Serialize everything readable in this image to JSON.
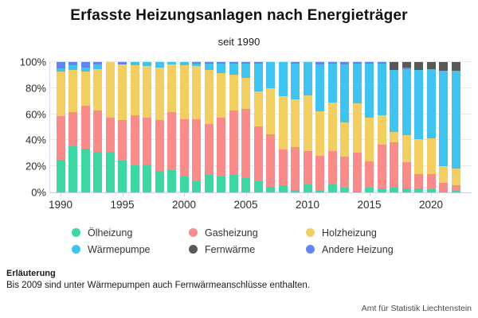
{
  "title": "Erfasste Heizungsanlagen nach Energieträger",
  "subtitle": "seit 1990",
  "footer": {
    "heading": "Erläuterung",
    "note": "Bis 2009 sind unter Wärmepumpen auch Fernwärmeanschlüsse enthalten.",
    "source": "Amt für Statistik Liechtenstein"
  },
  "chart_data": {
    "type": "bar",
    "stacked": true,
    "percent": true,
    "title": "Erfasste Heizungsanlagen nach Energieträger",
    "subtitle": "seit 1990",
    "xlabel": "",
    "ylabel": "",
    "ylim": [
      0,
      100
    ],
    "grid": true,
    "legend_position": "bottom",
    "x": [
      1990,
      1991,
      1992,
      1993,
      1994,
      1995,
      1996,
      1997,
      1998,
      1999,
      2000,
      2001,
      2002,
      2003,
      2004,
      2005,
      2006,
      2007,
      2008,
      2009,
      2010,
      2011,
      2012,
      2013,
      2014,
      2015,
      2016,
      2017,
      2018,
      2019,
      2020,
      2021,
      2022
    ],
    "x_tick_labels": [
      "1990",
      "1995",
      "2000",
      "2005",
      "2010",
      "2015",
      "2020"
    ],
    "y_tick_labels": [
      "0%",
      "20%",
      "40%",
      "60%",
      "80%",
      "100%"
    ],
    "stack_order": [
      "Ölheizung",
      "Gasheizung",
      "Holzheizung",
      "Wärmepumpe",
      "Andere Heizung",
      "Fernwärme"
    ],
    "series": [
      {
        "name": "Ölheizung",
        "color": "#3ed6a3",
        "values": [
          25.3,
          35.1,
          33.5,
          31.4,
          31.4,
          24.3,
          20.8,
          21.6,
          16.5,
          17.1,
          12.0,
          8.6,
          13.5,
          12.0,
          13.5,
          11.0,
          8.4,
          4.5,
          5.5,
          1.8,
          5.9,
          1.2,
          5.9,
          3.9,
          0.8,
          3.9,
          2.4,
          3.9,
          3.3,
          2.9,
          2.4,
          0.5,
          1.0
        ]
      },
      {
        "name": "Gasheizung",
        "color": "#f98b8b",
        "values": [
          33.5,
          26.5,
          33.0,
          31.7,
          25.9,
          31.2,
          38.2,
          35.7,
          38.8,
          44.5,
          44.3,
          47.3,
          38.9,
          45.3,
          49.2,
          53.1,
          42.0,
          40.2,
          27.4,
          33.1,
          26.1,
          26.8,
          26.1,
          23.4,
          29.6,
          19.8,
          34.1,
          34.7,
          20.0,
          11.2,
          11.7,
          6.8,
          4.5
        ]
      },
      {
        "name": "Holzheizung",
        "color": "#f3cf63",
        "values": [
          33.6,
          32.6,
          26.0,
          31.6,
          42.7,
          42.9,
          38.5,
          39.9,
          40.2,
          36.4,
          41.5,
          41.2,
          41.7,
          34.3,
          27.3,
          23.9,
          27.0,
          35.3,
          40.8,
          36.3,
          42.3,
          34.0,
          37.2,
          26.6,
          37.8,
          33.6,
          22.5,
          7.5,
          20.4,
          26.9,
          27.5,
          12.8,
          13.0
        ]
      },
      {
        "name": "Wärmepumpe",
        "color": "#41c3ef",
        "values": [
          3.0,
          3.6,
          3.0,
          3.5,
          0.0,
          0.0,
          2.5,
          2.8,
          4.5,
          2.0,
          2.2,
          1.9,
          4.9,
          7.4,
          8.5,
          10.6,
          21.6,
          20.0,
          26.3,
          27.8,
          25.7,
          36.4,
          29.6,
          44.5,
          30.6,
          41.5,
          39.6,
          48.0,
          50.9,
          52.7,
          53.1,
          73.4,
          75.0
        ]
      },
      {
        "name": "Fernwärme",
        "color": "#595959",
        "values": [
          0,
          0,
          0,
          0,
          0,
          0,
          0,
          0,
          0,
          0,
          0,
          0,
          0,
          0,
          0,
          0,
          0,
          0,
          0,
          0,
          0,
          0,
          0,
          0,
          0,
          0,
          0,
          5.9,
          4.3,
          6.3,
          5.3,
          6.5,
          6.5
        ]
      },
      {
        "name": "Andere Heizung",
        "color": "#6286f0",
        "values": [
          4.6,
          2.2,
          4.5,
          1.8,
          0.0,
          1.6,
          0.0,
          0.0,
          0.0,
          0.0,
          0.0,
          1.0,
          1.0,
          1.0,
          1.5,
          1.4,
          1.0,
          0.0,
          0.0,
          1.0,
          0.0,
          1.6,
          1.2,
          1.6,
          1.2,
          1.2,
          1.4,
          0.0,
          1.1,
          0.0,
          0.0,
          0.0,
          0.0
        ]
      }
    ]
  }
}
